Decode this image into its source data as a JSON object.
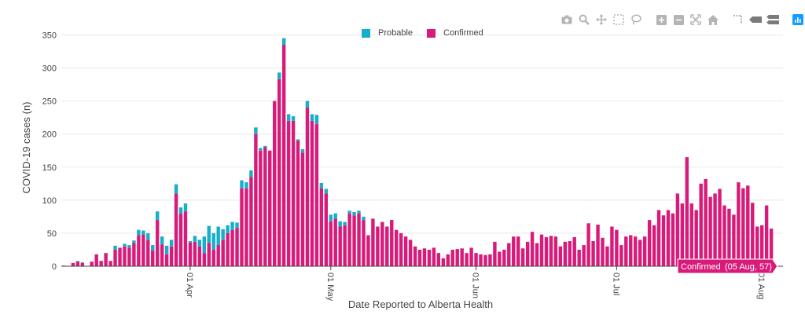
{
  "toolbar": {
    "buttons": [
      {
        "name": "camera-icon",
        "title": "Download plot as a png"
      },
      {
        "name": "zoom-icon",
        "title": "Zoom"
      },
      {
        "name": "pan-icon",
        "title": "Pan"
      },
      {
        "name": "box-select-icon",
        "title": "Box Select"
      },
      {
        "name": "lasso-select-icon",
        "title": "Lasso Select"
      },
      {
        "name": "zoom-in-icon",
        "title": "Zoom in"
      },
      {
        "name": "zoom-out-icon",
        "title": "Zoom out"
      },
      {
        "name": "autoscale-icon",
        "title": "Autoscale"
      },
      {
        "name": "home-icon",
        "title": "Reset axes"
      },
      {
        "name": "spike-lines-icon",
        "title": "Toggle Spike Lines"
      },
      {
        "name": "hover-closest-icon",
        "title": "Show closest data on hover"
      },
      {
        "name": "hover-compare-icon",
        "title": "Compare data on hover"
      },
      {
        "name": "plotly-logo-icon",
        "title": "Produced with Plotly"
      }
    ]
  },
  "colors": {
    "probable": "#17aecb",
    "confirmed": "#d81b7a",
    "grid": "#e8e8e8",
    "axis_text": "#444444"
  },
  "tooltip": {
    "series": "Confirmed",
    "value": "(05 Aug, 57)"
  },
  "chart_data": {
    "type": "bar",
    "barmode": "stack",
    "xlabel": "Date Reported to Alberta Health",
    "ylabel": "COVID-19 cases (n)",
    "ylim": [
      0,
      360
    ],
    "yticks": [
      0,
      50,
      100,
      150,
      200,
      250,
      300,
      350
    ],
    "x_start": "2020-03-05",
    "x_end": "2020-08-05",
    "xticks": [
      {
        "label": "01 Apr",
        "date": "2020-04-01"
      },
      {
        "label": "01 May",
        "date": "2020-05-01"
      },
      {
        "label": "01 Jun",
        "date": "2020-06-01"
      },
      {
        "label": "01 Jul",
        "date": "2020-07-01"
      },
      {
        "label": "01 Aug",
        "date": "2020-08-01"
      }
    ],
    "legend_position": "top-center",
    "grid": true,
    "series": [
      {
        "name": "Probable",
        "values": [
          0,
          0,
          0,
          1,
          1,
          0,
          0,
          0,
          0,
          0,
          0,
          6,
          0,
          4,
          4,
          4,
          8,
          6,
          10,
          8,
          13,
          12,
          13,
          10,
          14,
          9,
          12,
          2,
          9,
          10,
          25,
          26,
          25,
          28,
          16,
          12,
          12,
          8,
          12,
          9,
          10,
          10,
          4,
          2,
          0,
          0,
          10,
          10,
          10,
          7,
          2,
          5,
          10,
          10,
          14,
          8,
          7,
          10,
          8,
          8,
          5,
          4,
          5,
          4,
          5,
          0,
          0,
          0,
          0,
          0,
          0,
          0,
          0,
          0,
          0,
          0,
          0,
          0,
          0,
          0,
          0,
          0,
          0,
          0,
          0,
          0,
          0,
          0,
          0,
          0,
          0,
          0,
          0,
          0,
          0,
          0,
          0,
          0,
          0,
          0,
          0,
          0,
          0,
          0,
          0,
          0,
          0,
          0,
          0,
          0,
          0,
          0,
          0,
          0,
          0,
          0,
          0,
          0,
          0,
          0,
          0,
          0,
          0,
          0,
          0,
          0,
          0,
          0,
          0,
          0,
          0,
          0,
          0,
          0,
          0,
          0,
          0,
          0,
          0,
          0,
          0,
          0,
          0,
          0,
          0,
          0,
          0,
          0,
          0,
          0,
          0,
          0,
          0,
          0,
          0,
          0,
          0,
          0,
          0,
          0
        ]
      },
      {
        "name": "Confirmed",
        "values": [
          1,
          0,
          5,
          7,
          5,
          0,
          7,
          18,
          8,
          20,
          8,
          25,
          28,
          30,
          28,
          35,
          47,
          48,
          40,
          24,
          70,
          33,
          18,
          30,
          110,
          80,
          83,
          36,
          37,
          30,
          20,
          35,
          25,
          32,
          40,
          50,
          55,
          58,
          118,
          118,
          135,
          200,
          175,
          180,
          175,
          250,
          283,
          335,
          220,
          220,
          190,
          172,
          240,
          220,
          215,
          118,
          110,
          68,
          72,
          60,
          62,
          80,
          77,
          80,
          70,
          47,
          72,
          60,
          67,
          60,
          70,
          55,
          50,
          45,
          40,
          30,
          25,
          27,
          25,
          28,
          20,
          12,
          18,
          25,
          26,
          27,
          20,
          28,
          20,
          18,
          17,
          18,
          37,
          22,
          25,
          35,
          45,
          45,
          27,
          37,
          52,
          35,
          48,
          44,
          46,
          45,
          30,
          37,
          38,
          44,
          25,
          32,
          65,
          38,
          63,
          43,
          30,
          60,
          55,
          32,
          45,
          47,
          45,
          40,
          45,
          70,
          62,
          85,
          77,
          85,
          80,
          110,
          95,
          165,
          95,
          85,
          125,
          132,
          105,
          110,
          117,
          92,
          87,
          78,
          127,
          118,
          122,
          96,
          60,
          62,
          92,
          57
        ]
      }
    ]
  }
}
